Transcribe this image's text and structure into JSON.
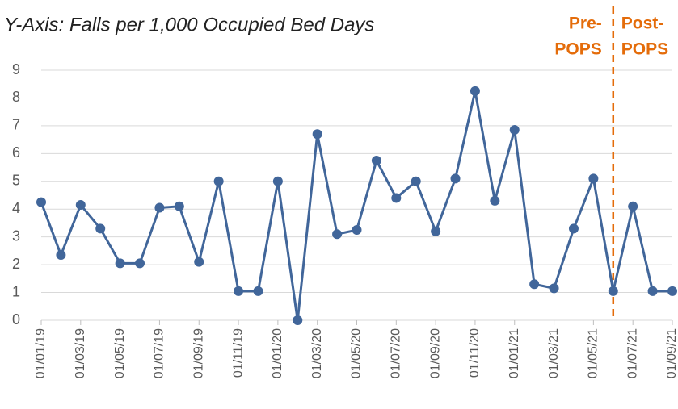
{
  "chart_data": {
    "type": "line",
    "subtitle": "Y-Axis: Falls per 1,000 Occupied Bed Days",
    "categories": [
      "01/01/19",
      null,
      "01/03/19",
      null,
      "01/05/19",
      null,
      "01/07/19",
      null,
      "01/09/19",
      null,
      "01/11/19",
      null,
      "01/01/20",
      null,
      "01/03/20",
      null,
      "01/05/20",
      null,
      "01/07/20",
      null,
      "01/09/20",
      null,
      "01/11/20",
      null,
      "01/01/21",
      null,
      "01/03/21",
      null,
      "01/05/21",
      null,
      "01/07/21",
      null,
      "01/09/21"
    ],
    "series": [
      {
        "name": "Falls",
        "color": "#41669a",
        "values": [
          4.25,
          2.35,
          4.15,
          3.3,
          2.05,
          2.05,
          4.05,
          4.1,
          2.1,
          5.0,
          1.05,
          1.05,
          5.0,
          0,
          6.7,
          3.1,
          3.25,
          5.75,
          4.4,
          5.0,
          3.2,
          5.1,
          8.25,
          4.3,
          6.85,
          1.3,
          1.15,
          3.3,
          5.1,
          1.05,
          4.1,
          1.05,
          1.05
        ]
      }
    ],
    "ylim": [
      0,
      9
    ],
    "yticks": [
      0,
      1,
      2,
      3,
      4,
      5,
      6,
      7,
      8,
      9
    ],
    "grid": true,
    "split_index": 29,
    "split_color": "#e46c0a",
    "annotations": [
      [
        "Pre-",
        "POPS"
      ],
      [
        "Post-",
        "POPS"
      ]
    ]
  }
}
